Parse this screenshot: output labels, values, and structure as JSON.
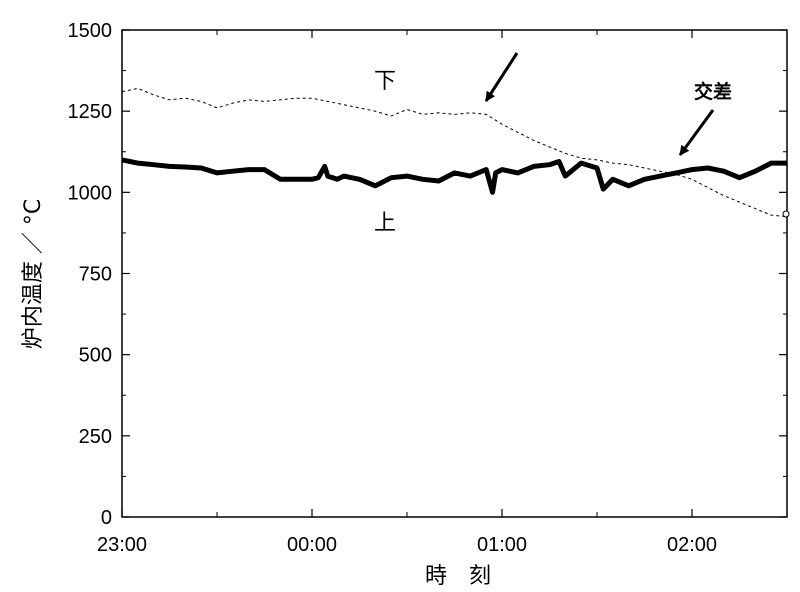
{
  "chart_data": {
    "type": "line",
    "xlabel": "時　刻",
    "ylabel": "炉内温度 ／ °C",
    "x_tick_labels": [
      "23:00",
      "00:00",
      "01:00",
      "02:00"
    ],
    "y_tick_labels": [
      "0",
      "250",
      "500",
      "750",
      "1000",
      "1250",
      "1500"
    ],
    "ylim": [
      0,
      1500
    ],
    "xlim": [
      "23:00",
      "02:30"
    ],
    "grid": false,
    "series": [
      {
        "name": "上",
        "style": "thick-solid",
        "x": [
          "23:00",
          "23:05",
          "23:10",
          "23:15",
          "23:20",
          "23:25",
          "23:30",
          "23:35",
          "23:40",
          "23:45",
          "23:50",
          "23:55",
          "00:00",
          "00:02",
          "00:04",
          "00:05",
          "00:08",
          "00:10",
          "00:15",
          "00:20",
          "00:25",
          "00:30",
          "00:35",
          "00:40",
          "00:45",
          "00:50",
          "00:55",
          "00:57",
          "00:58",
          "01:00",
          "01:05",
          "01:10",
          "01:15",
          "01:18",
          "01:20",
          "01:25",
          "01:30",
          "01:32",
          "01:35",
          "01:40",
          "01:45",
          "01:50",
          "01:55",
          "02:00",
          "02:05",
          "02:10",
          "02:15",
          "02:20",
          "02:25",
          "02:30"
        ],
        "values": [
          1100,
          1090,
          1085,
          1080,
          1078,
          1075,
          1060,
          1065,
          1070,
          1070,
          1040,
          1040,
          1040,
          1045,
          1080,
          1050,
          1040,
          1050,
          1040,
          1020,
          1045,
          1050,
          1040,
          1035,
          1060,
          1050,
          1070,
          1000,
          1060,
          1070,
          1060,
          1080,
          1085,
          1095,
          1050,
          1090,
          1075,
          1010,
          1040,
          1020,
          1040,
          1050,
          1060,
          1070,
          1075,
          1065,
          1045,
          1065,
          1090,
          1090
        ]
      },
      {
        "name": "下",
        "style": "dotted",
        "x": [
          "23:00",
          "23:05",
          "23:10",
          "23:15",
          "23:20",
          "23:25",
          "23:30",
          "23:35",
          "23:40",
          "23:45",
          "23:50",
          "23:55",
          "00:00",
          "00:05",
          "00:10",
          "00:15",
          "00:20",
          "00:25",
          "00:30",
          "00:35",
          "00:40",
          "00:45",
          "00:50",
          "00:55",
          "01:00",
          "01:05",
          "01:10",
          "01:15",
          "01:20",
          "01:25",
          "01:30",
          "01:35",
          "01:40",
          "01:45",
          "01:50",
          "01:55",
          "02:00",
          "02:05",
          "02:10",
          "02:15",
          "02:20",
          "02:25",
          "02:30"
        ],
        "values": [
          1310,
          1320,
          1300,
          1285,
          1290,
          1280,
          1260,
          1275,
          1285,
          1280,
          1285,
          1290,
          1290,
          1280,
          1270,
          1260,
          1250,
          1235,
          1255,
          1240,
          1245,
          1240,
          1245,
          1240,
          1210,
          1185,
          1160,
          1140,
          1120,
          1105,
          1100,
          1090,
          1085,
          1075,
          1065,
          1055,
          1040,
          1015,
          990,
          970,
          950,
          930,
          925
        ]
      }
    ],
    "annotations": [
      {
        "text": "下",
        "target": "series-lower"
      },
      {
        "text": "上",
        "target": "series-upper"
      },
      {
        "text": "交差",
        "target": "crossing"
      }
    ]
  }
}
